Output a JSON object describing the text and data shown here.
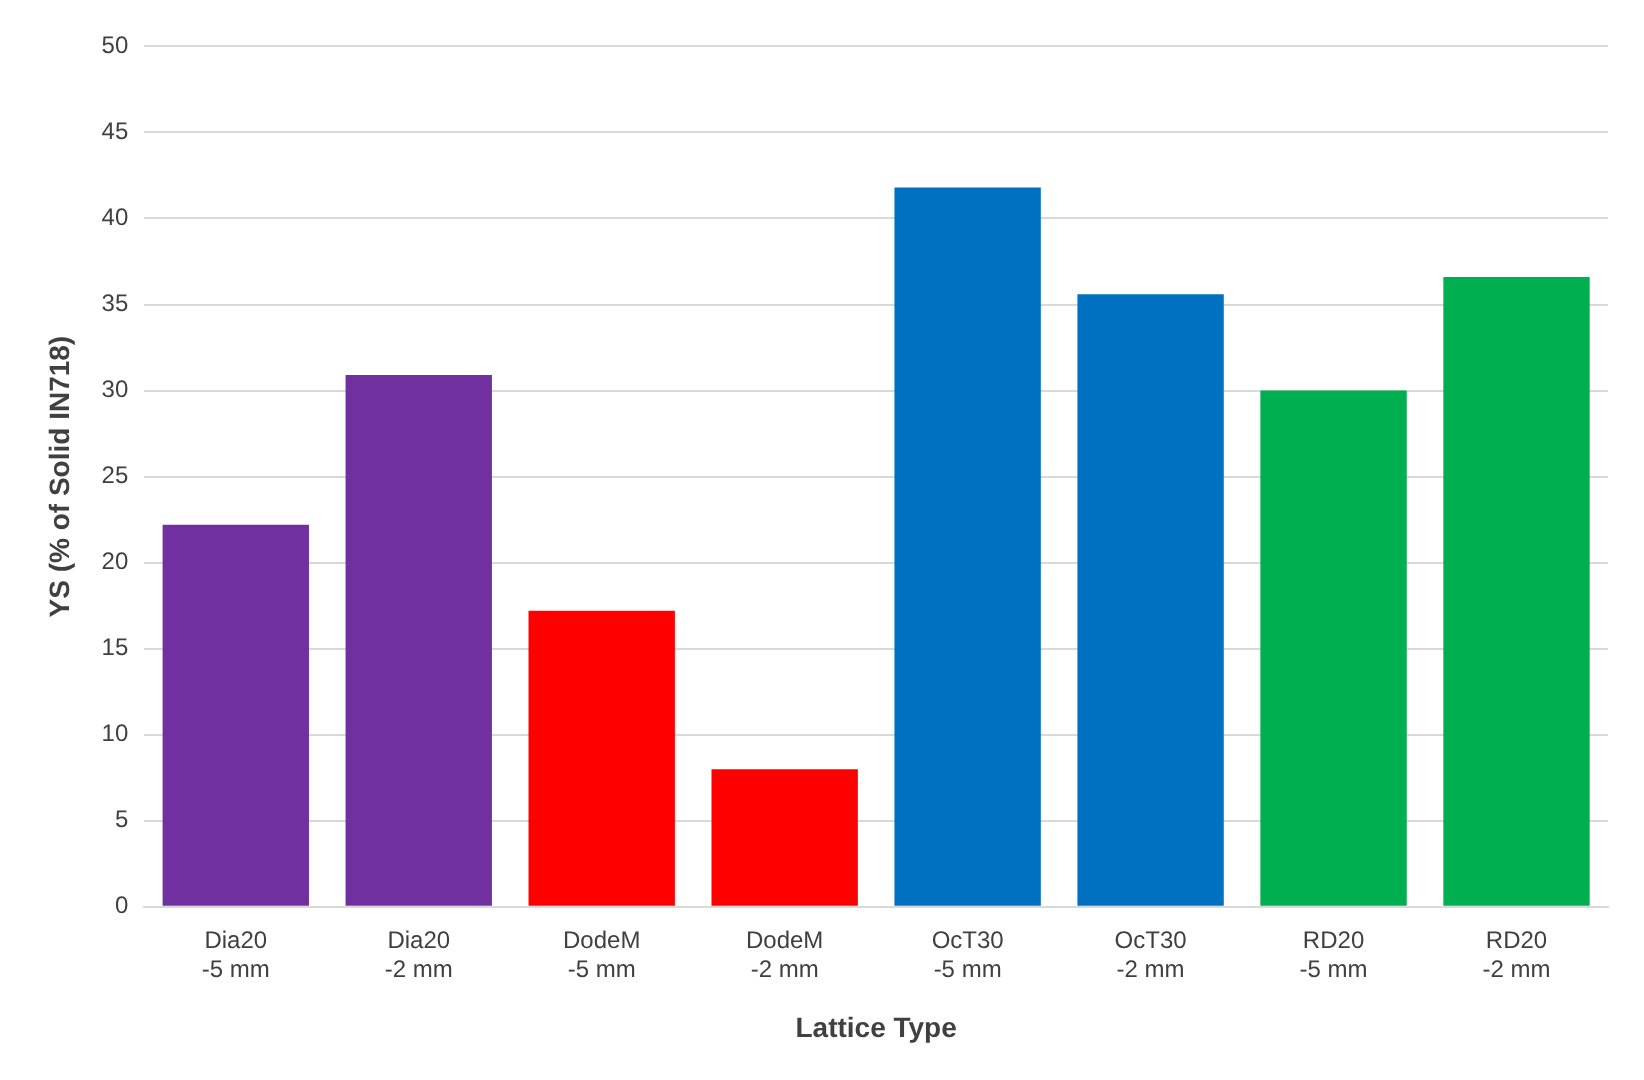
{
  "chart_data": {
    "type": "bar",
    "xlabel": "Lattice Type",
    "ylabel": "YS (% of Solid IN718)",
    "categories": [
      "Dia20\n-5 mm",
      "Dia20\n-2 mm",
      "DodeM\n-5 mm",
      "DodeM\n-2 mm",
      "OcT30\n-5 mm",
      "OcT30\n-2 mm",
      "RD20\n-5 mm",
      "RD20\n-2 mm"
    ],
    "values": [
      22.2,
      30.9,
      17.2,
      8.0,
      41.8,
      35.6,
      30.0,
      36.6
    ],
    "colors": [
      "#7030a0",
      "#7030a0",
      "#ff0000",
      "#ff0000",
      "#0070c0",
      "#0070c0",
      "#00b050",
      "#00b050"
    ],
    "ylim": [
      0,
      50
    ],
    "yticks": [
      0,
      5,
      10,
      15,
      20,
      25,
      30,
      35,
      40,
      45,
      50
    ],
    "grid": "y",
    "legend": false
  }
}
